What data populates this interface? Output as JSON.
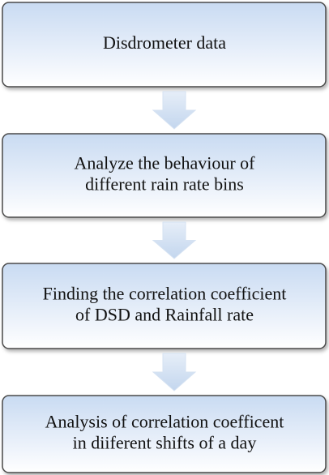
{
  "nodes": [
    {
      "lines": [
        "Disdrometer data"
      ]
    },
    {
      "lines": [
        "Analyze the behaviour of",
        "different rain rate bins"
      ]
    },
    {
      "lines": [
        "Finding the correlation coefficient",
        "of DSD and Rainfall rate"
      ]
    },
    {
      "lines": [
        "Analysis of correlation coefficent",
        "in diiferent shifts of a day"
      ]
    }
  ]
}
